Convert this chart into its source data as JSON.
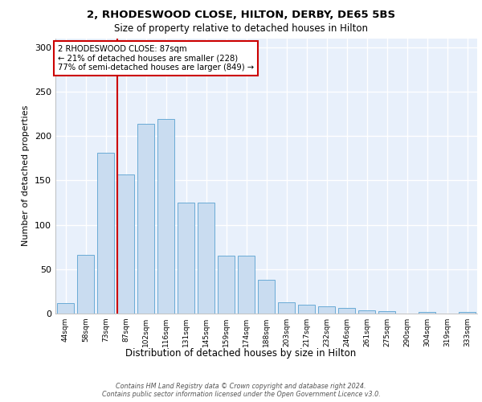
{
  "title1": "2, RHODESWOOD CLOSE, HILTON, DERBY, DE65 5BS",
  "title2": "Size of property relative to detached houses in Hilton",
  "xlabel": "Distribution of detached houses by size in Hilton",
  "ylabel": "Number of detached properties",
  "categories": [
    "44sqm",
    "58sqm",
    "73sqm",
    "87sqm",
    "102sqm",
    "116sqm",
    "131sqm",
    "145sqm",
    "159sqm",
    "174sqm",
    "188sqm",
    "203sqm",
    "217sqm",
    "232sqm",
    "246sqm",
    "261sqm",
    "275sqm",
    "290sqm",
    "304sqm",
    "319sqm",
    "333sqm"
  ],
  "values": [
    12,
    66,
    181,
    157,
    214,
    219,
    125,
    125,
    65,
    65,
    38,
    13,
    10,
    8,
    6,
    4,
    3,
    0,
    2,
    0,
    2
  ],
  "bar_color": "#c9dcf0",
  "bar_edge_color": "#6aabd6",
  "vline_color": "#cc0000",
  "annotation_text": "2 RHODESWOOD CLOSE: 87sqm\n← 21% of detached houses are smaller (228)\n77% of semi-detached houses are larger (849) →",
  "annotation_box_color": "#ffffff",
  "annotation_box_edge": "#cc0000",
  "footnote": "Contains HM Land Registry data © Crown copyright and database right 2024.\nContains public sector information licensed under the Open Government Licence v3.0.",
  "ylim": [
    0,
    310
  ],
  "yticks": [
    0,
    50,
    100,
    150,
    200,
    250,
    300
  ],
  "bg_color": "#e8f0fb",
  "grid_color": "#ffffff"
}
